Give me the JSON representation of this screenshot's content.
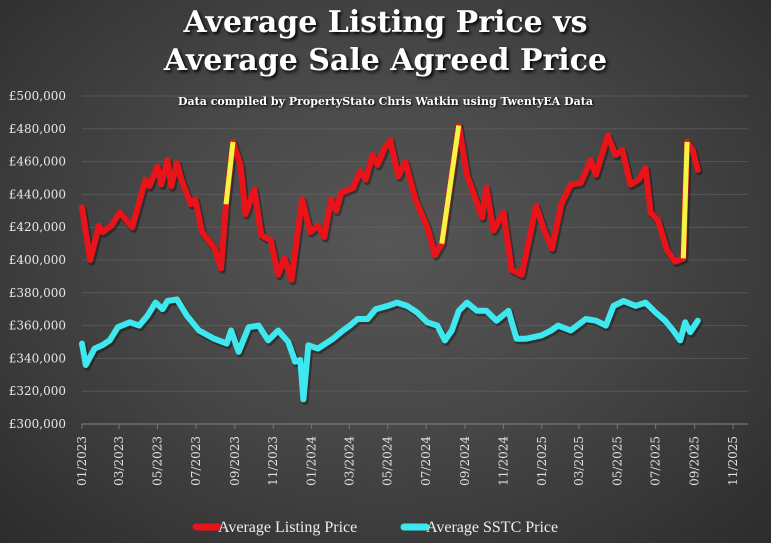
{
  "chart_data": {
    "type": "line",
    "title_line1": "Average Listing Price vs",
    "title_line2": "Average Sale Agreed Price",
    "subtitle": "Data compiled by PropertyStato Chris Watkin using TwentyEA Data",
    "xlabel": "",
    "ylabel": "",
    "ylim": [
      300000,
      500000
    ],
    "xlim": [
      "2023-01-01",
      "2025-11-01"
    ],
    "y_ticks": [
      "£300,000",
      "£320,000",
      "£340,000",
      "£360,000",
      "£380,000",
      "£400,000",
      "£420,000",
      "£440,000",
      "£460,000",
      "£480,000",
      "£500,000"
    ],
    "y_tick_values": [
      300000,
      320000,
      340000,
      360000,
      380000,
      400000,
      420000,
      440000,
      460000,
      480000,
      500000
    ],
    "x_ticks": [
      "01/2023",
      "03/2023",
      "05/2023",
      "07/2023",
      "09/2023",
      "11/2023",
      "01/2024",
      "03/2024",
      "05/2024",
      "07/2024",
      "09/2024",
      "11/2024",
      "01/2025",
      "03/2025",
      "05/2025",
      "07/2025",
      "09/2025",
      "11/2025"
    ],
    "x_tick_dates": [
      "2023-01-01",
      "2023-03-01",
      "2023-05-01",
      "2023-07-01",
      "2023-09-01",
      "2023-11-01",
      "2024-01-01",
      "2024-03-01",
      "2024-05-01",
      "2024-07-01",
      "2024-09-01",
      "2024-11-01",
      "2025-01-01",
      "2025-03-01",
      "2025-05-01",
      "2025-07-01",
      "2025-09-01",
      "2025-11-01"
    ],
    "grid": true,
    "legend_placement": "bottom",
    "highlight_color": "#f4f442",
    "highlights": [
      [
        "2023-08-18",
        "2023-08-29"
      ],
      [
        "2024-07-26",
        "2024-08-22"
      ],
      [
        "2025-08-14",
        "2025-08-20"
      ]
    ],
    "series": [
      {
        "name": "Average Listing Price",
        "color": "#e8141a",
        "points": [
          [
            "2023-01-01",
            432000
          ],
          [
            "2023-01-14",
            400000
          ],
          [
            "2023-01-28",
            421000
          ],
          [
            "2023-02-03",
            417000
          ],
          [
            "2023-02-17",
            421000
          ],
          [
            "2023-03-02",
            429000
          ],
          [
            "2023-03-22",
            420000
          ],
          [
            "2023-04-12",
            449000
          ],
          [
            "2023-04-18",
            445000
          ],
          [
            "2023-05-01",
            457000
          ],
          [
            "2023-05-07",
            446000
          ],
          [
            "2023-05-17",
            461000
          ],
          [
            "2023-05-23",
            445000
          ],
          [
            "2023-06-01",
            459000
          ],
          [
            "2023-06-08",
            449000
          ],
          [
            "2023-06-23",
            434000
          ],
          [
            "2023-06-30",
            437000
          ],
          [
            "2023-07-11",
            417000
          ],
          [
            "2023-07-31",
            407000
          ],
          [
            "2023-08-10",
            395000
          ],
          [
            "2023-08-18",
            434000
          ],
          [
            "2023-08-29",
            472000
          ],
          [
            "2023-09-10",
            458000
          ],
          [
            "2023-09-18",
            428000
          ],
          [
            "2023-10-02",
            443000
          ],
          [
            "2023-10-13",
            415000
          ],
          [
            "2023-10-28",
            412000
          ],
          [
            "2023-11-09",
            391000
          ],
          [
            "2023-11-19",
            401000
          ],
          [
            "2023-11-30",
            388000
          ],
          [
            "2023-12-17",
            437000
          ],
          [
            "2023-12-30",
            417000
          ],
          [
            "2024-01-11",
            421000
          ],
          [
            "2024-01-21",
            414000
          ],
          [
            "2024-02-01",
            437000
          ],
          [
            "2024-02-09",
            430000
          ],
          [
            "2024-02-17",
            441000
          ],
          [
            "2024-03-07",
            444000
          ],
          [
            "2024-03-18",
            454000
          ],
          [
            "2024-03-27",
            449000
          ],
          [
            "2024-04-07",
            464000
          ],
          [
            "2024-04-15",
            458000
          ],
          [
            "2024-04-26",
            468000
          ],
          [
            "2024-05-05",
            473000
          ],
          [
            "2024-05-18",
            451000
          ],
          [
            "2024-05-29",
            460000
          ],
          [
            "2024-06-14",
            437000
          ],
          [
            "2024-07-03",
            420000
          ],
          [
            "2024-07-15",
            403000
          ],
          [
            "2024-07-26",
            410000
          ],
          [
            "2024-08-22",
            482000
          ],
          [
            "2024-09-04",
            452000
          ],
          [
            "2024-09-15",
            440000
          ],
          [
            "2024-09-28",
            426000
          ],
          [
            "2024-10-05",
            444000
          ],
          [
            "2024-10-16",
            418000
          ],
          [
            "2024-11-01",
            429000
          ],
          [
            "2024-11-14",
            394000
          ],
          [
            "2024-11-30",
            391000
          ],
          [
            "2024-12-23",
            433000
          ],
          [
            "2025-01-05",
            418000
          ],
          [
            "2025-01-17",
            407000
          ],
          [
            "2025-02-01",
            434000
          ],
          [
            "2025-02-16",
            446000
          ],
          [
            "2025-03-04",
            447000
          ],
          [
            "2025-03-20",
            461000
          ],
          [
            "2025-03-28",
            452000
          ],
          [
            "2025-04-16",
            476000
          ],
          [
            "2025-04-28",
            464000
          ],
          [
            "2025-05-09",
            467000
          ],
          [
            "2025-05-22",
            446000
          ],
          [
            "2025-06-04",
            449000
          ],
          [
            "2025-06-15",
            456000
          ],
          [
            "2025-06-23",
            429000
          ],
          [
            "2025-07-05",
            424000
          ],
          [
            "2025-07-19",
            406000
          ],
          [
            "2025-08-01",
            399000
          ],
          [
            "2025-08-14",
            401000
          ],
          [
            "2025-08-20",
            472000
          ],
          [
            "2025-08-29",
            467000
          ],
          [
            "2025-09-06",
            455000
          ]
        ]
      },
      {
        "name": "Average SSTC Price",
        "color": "#3ee8ee",
        "points": [
          [
            "2023-01-01",
            349000
          ],
          [
            "2023-01-07",
            336000
          ],
          [
            "2023-01-21",
            346000
          ],
          [
            "2023-02-02",
            348000
          ],
          [
            "2023-02-14",
            351000
          ],
          [
            "2023-02-27",
            359000
          ],
          [
            "2023-03-18",
            362000
          ],
          [
            "2023-04-02",
            360000
          ],
          [
            "2023-04-15",
            366000
          ],
          [
            "2023-04-28",
            374000
          ],
          [
            "2023-05-09",
            370000
          ],
          [
            "2023-05-17",
            375000
          ],
          [
            "2023-06-01",
            376000
          ],
          [
            "2023-06-17",
            366000
          ],
          [
            "2023-07-06",
            357000
          ],
          [
            "2023-07-30",
            352000
          ],
          [
            "2023-08-19",
            349000
          ],
          [
            "2023-08-26",
            357000
          ],
          [
            "2023-09-07",
            344000
          ],
          [
            "2023-09-23",
            359000
          ],
          [
            "2023-10-09",
            360000
          ],
          [
            "2023-10-24",
            351000
          ],
          [
            "2023-11-09",
            357000
          ],
          [
            "2023-11-25",
            350000
          ],
          [
            "2023-12-06",
            338000
          ],
          [
            "2023-12-14",
            339000
          ],
          [
            "2023-12-19",
            315000
          ],
          [
            "2023-12-27",
            348000
          ],
          [
            "2024-01-11",
            346000
          ],
          [
            "2024-02-04",
            352000
          ],
          [
            "2024-02-20",
            357000
          ],
          [
            "2024-03-02",
            360000
          ],
          [
            "2024-03-14",
            364000
          ],
          [
            "2024-03-30",
            364000
          ],
          [
            "2024-04-12",
            370000
          ],
          [
            "2024-05-01",
            372000
          ],
          [
            "2024-05-16",
            374000
          ],
          [
            "2024-06-01",
            372000
          ],
          [
            "2024-06-17",
            368000
          ],
          [
            "2024-07-03",
            362000
          ],
          [
            "2024-07-19",
            360000
          ],
          [
            "2024-07-31",
            351000
          ],
          [
            "2024-08-11",
            357000
          ],
          [
            "2024-08-22",
            369000
          ],
          [
            "2024-09-04",
            374000
          ],
          [
            "2024-09-20",
            369000
          ],
          [
            "2024-10-05",
            369000
          ],
          [
            "2024-10-21",
            363000
          ],
          [
            "2024-11-09",
            369000
          ],
          [
            "2024-11-22",
            352000
          ],
          [
            "2024-12-07",
            352000
          ],
          [
            "2024-12-31",
            354000
          ],
          [
            "2025-01-16",
            357000
          ],
          [
            "2025-01-27",
            360000
          ],
          [
            "2025-02-16",
            357000
          ],
          [
            "2025-03-12",
            364000
          ],
          [
            "2025-03-28",
            363000
          ],
          [
            "2025-04-13",
            360000
          ],
          [
            "2025-04-25",
            372000
          ],
          [
            "2025-05-11",
            375000
          ],
          [
            "2025-05-30",
            372000
          ],
          [
            "2025-06-15",
            374000
          ],
          [
            "2025-07-01",
            368000
          ],
          [
            "2025-07-16",
            363000
          ],
          [
            "2025-07-29",
            357000
          ],
          [
            "2025-08-09",
            351000
          ],
          [
            "2025-08-17",
            362000
          ],
          [
            "2025-08-25",
            356000
          ],
          [
            "2025-09-06",
            363000
          ]
        ]
      }
    ]
  }
}
